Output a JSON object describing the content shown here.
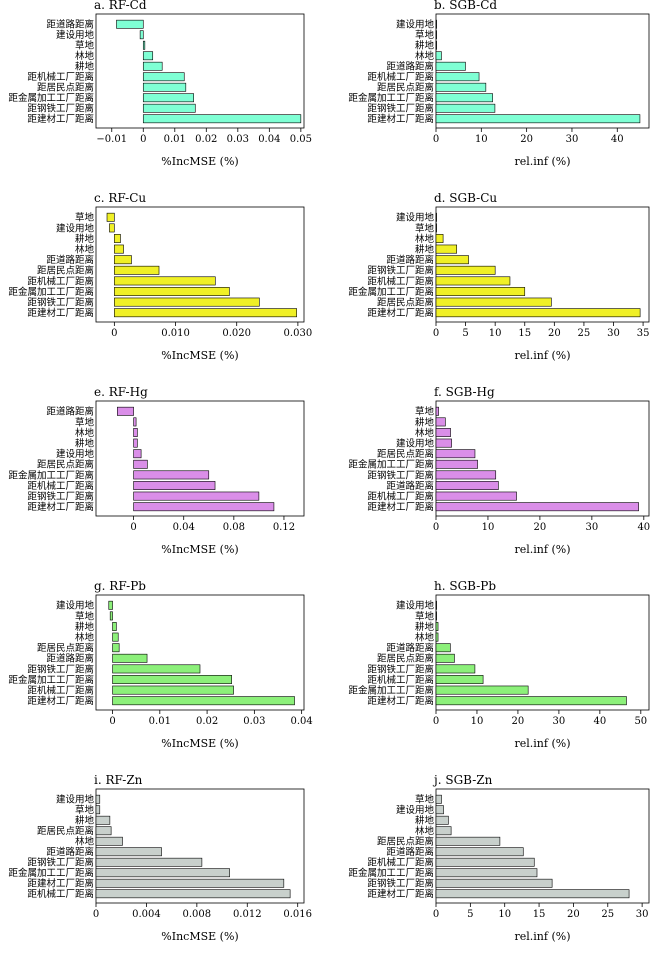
{
  "figure": "importance-panels",
  "chart_data": [
    {
      "type": "bar",
      "orientation": "horizontal",
      "title": "a. RF-Cd",
      "xlabel": "%IncMSE (%)",
      "xlim": [
        -0.015,
        0.051
      ],
      "xticks": [
        -0.01,
        0,
        0.01,
        0.02,
        0.03,
        0.04,
        0.05
      ],
      "xtick_labels": [
        "−0.01",
        "0",
        "0.01",
        "0.02",
        "0.03",
        "0.04",
        "0.05"
      ],
      "categories": [
        "距道路距离",
        "建设用地",
        "草地",
        "林地",
        "耕地",
        "距机械工厂距离",
        "距居民点距离",
        "距金属加工工厂距离",
        "距钢铁工厂距离",
        "距建材工厂距离"
      ],
      "values": [
        -0.0085,
        -0.001,
        0.0005,
        0.003,
        0.006,
        0.013,
        0.0135,
        0.016,
        0.0165,
        0.05
      ],
      "color": "#7fffd4"
    },
    {
      "type": "bar",
      "orientation": "horizontal",
      "title": "b. SGB-Cd",
      "xlabel": "rel.inf (%)",
      "xlim": [
        0,
        47
      ],
      "xticks": [
        0,
        10,
        20,
        30,
        40
      ],
      "xtick_labels": [
        "0",
        "10",
        "20",
        "30",
        "40"
      ],
      "categories": [
        "建设用地",
        "草地",
        "耕地",
        "林地",
        "距道路距离",
        "距机械工厂距离",
        "距居民点距离",
        "距金属加工工厂距离",
        "距钢铁工厂距离",
        "距建材工厂距离"
      ],
      "values": [
        0,
        0,
        0,
        1.2,
        6.5,
        9.5,
        11,
        12.5,
        13,
        45
      ],
      "color": "#7fffd4"
    },
    {
      "type": "bar",
      "orientation": "horizontal",
      "title": "c. RF-Cu",
      "xlabel": "%IncMSE (%)",
      "xlim": [
        -0.003,
        0.031
      ],
      "xticks": [
        0,
        0.01,
        0.02,
        0.03
      ],
      "xtick_labels": [
        "0",
        "0.010",
        "0.020",
        "0.030"
      ],
      "categories": [
        "草地",
        "建设用地",
        "耕地",
        "林地",
        "距道路距离",
        "距居民点距离",
        "距机械工厂距离",
        "距金属加工工厂距离",
        "距钢铁工厂距离",
        "距建材工厂距离"
      ],
      "values": [
        -0.0012,
        -0.0008,
        0.001,
        0.0015,
        0.0028,
        0.0073,
        0.0165,
        0.0188,
        0.0237,
        0.0298
      ],
      "color": "#f0f026"
    },
    {
      "type": "bar",
      "orientation": "horizontal",
      "title": "d. SGB-Cu",
      "xlabel": "rel.inf (%)",
      "xlim": [
        0,
        36
      ],
      "xticks": [
        0,
        5,
        10,
        15,
        20,
        25,
        30,
        35
      ],
      "xtick_labels": [
        "0",
        "5",
        "10",
        "15",
        "20",
        "25",
        "30",
        "35"
      ],
      "categories": [
        "建设用地",
        "草地",
        "林地",
        "耕地",
        "距道路距离",
        "距钢铁工厂距离",
        "距机械工厂距离",
        "距金属加工工厂距离",
        "距居民点距离",
        "距建材工厂距离"
      ],
      "values": [
        0,
        0,
        1.2,
        3.5,
        5.5,
        10,
        12.5,
        15,
        19.5,
        34.5
      ],
      "color": "#f0f026"
    },
    {
      "type": "bar",
      "orientation": "horizontal",
      "title": "e. RF-Hg",
      "xlabel": "%IncMSE (%)",
      "xlim": [
        -0.03,
        0.136
      ],
      "xticks": [
        0,
        0.04,
        0.08,
        0.12
      ],
      "xtick_labels": [
        "0",
        "0.04",
        "0.08",
        "0.12"
      ],
      "categories": [
        "距道路距离",
        "草地",
        "林地",
        "耕地",
        "建设用地",
        "距居民点距离",
        "距金属加工工厂距离",
        "距机械工厂距离",
        "距钢铁工厂距离",
        "距建材工厂距离"
      ],
      "values": [
        -0.013,
        0.002,
        0.003,
        0.003,
        0.006,
        0.011,
        0.06,
        0.065,
        0.1,
        0.112
      ],
      "color": "#da8ee8"
    },
    {
      "type": "bar",
      "orientation": "horizontal",
      "title": "f. SGB-Hg",
      "xlabel": "rel.inf (%)",
      "xlim": [
        0,
        41
      ],
      "xticks": [
        0,
        10,
        20,
        30,
        40
      ],
      "xtick_labels": [
        "0",
        "10",
        "20",
        "30",
        "40"
      ],
      "categories": [
        "草地",
        "耕地",
        "林地",
        "建设用地",
        "距居民点距离",
        "距金属加工工厂距离",
        "距钢铁工厂距离",
        "距道路距离",
        "距机械工厂距离",
        "距建材工厂距离"
      ],
      "values": [
        0.5,
        1.8,
        2.8,
        3,
        7.5,
        8,
        11.5,
        12,
        15.5,
        39
      ],
      "color": "#da8ee8"
    },
    {
      "type": "bar",
      "orientation": "horizontal",
      "title": "g. RF-Pb",
      "xlabel": "%IncMSE (%)",
      "xlim": [
        -0.0035,
        0.0405
      ],
      "xticks": [
        0,
        0.01,
        0.02,
        0.03,
        0.04
      ],
      "xtick_labels": [
        "0",
        "0.01",
        "0.02",
        "0.03",
        "0.04"
      ],
      "categories": [
        "建设用地",
        "草地",
        "耕地",
        "林地",
        "距居民点距离",
        "距道路距离",
        "距钢铁工厂距离",
        "距金属加工工厂距离",
        "距机械工厂距离",
        "距建材工厂距离"
      ],
      "values": [
        -0.0008,
        -0.0005,
        0.0008,
        0.0012,
        0.0014,
        0.0073,
        0.0185,
        0.0252,
        0.0256,
        0.0385
      ],
      "color": "#8cf07a"
    },
    {
      "type": "bar",
      "orientation": "horizontal",
      "title": "h. SGB-Pb",
      "xlabel": "rel.inf (%)",
      "xlim": [
        0,
        52
      ],
      "xticks": [
        0,
        10,
        20,
        30,
        40,
        50
      ],
      "xtick_labels": [
        "0",
        "10",
        "20",
        "30",
        "40",
        "50"
      ],
      "categories": [
        "建设用地",
        "草地",
        "耕地",
        "林地",
        "距道路距离",
        "距居民点距离",
        "距钢铁工厂距离",
        "距机械工厂距离",
        "距金属加工工厂距离",
        "距建材工厂距离"
      ],
      "values": [
        0,
        0,
        0.5,
        0.5,
        3.5,
        4.5,
        9.5,
        11.5,
        22.5,
        46.5
      ],
      "color": "#8cf07a"
    },
    {
      "type": "bar",
      "orientation": "horizontal",
      "title": "i. RF-Zn",
      "xlabel": "%IncMSE (%)",
      "xlim": [
        0,
        0.0165
      ],
      "xticks": [
        0,
        0.004,
        0.008,
        0.012,
        0.016
      ],
      "xtick_labels": [
        "0",
        "0.004",
        "0.008",
        "0.012",
        "0.016"
      ],
      "categories": [
        "建设用地",
        "草地",
        "耕地",
        "距居民点距离",
        "林地",
        "距道路距离",
        "距钢铁工厂距离",
        "距金属加工工厂距离",
        "距建材工厂距离",
        "距机械工厂距离"
      ],
      "values": [
        0.0003,
        0.0003,
        0.0011,
        0.0012,
        0.0021,
        0.0052,
        0.0084,
        0.0106,
        0.0149,
        0.0154
      ],
      "color": "#c8d0cc"
    },
    {
      "type": "bar",
      "orientation": "horizontal",
      "title": "j. SGB-Zn",
      "xlabel": "rel.inf (%)",
      "xlim": [
        0,
        31
      ],
      "xticks": [
        0,
        5,
        10,
        15,
        20,
        25,
        30
      ],
      "xtick_labels": [
        "0",
        "5",
        "10",
        "15",
        "20",
        "25",
        "30"
      ],
      "categories": [
        "草地",
        "建设用地",
        "耕地",
        "林地",
        "距居民点距离",
        "距道路距离",
        "距机械工厂距离",
        "距金属加工工厂距离",
        "距钢铁工厂距离",
        "距建材工厂距离"
      ],
      "values": [
        0.8,
        1.1,
        1.8,
        2.2,
        9.3,
        12.7,
        14.3,
        14.7,
        16.9,
        28.1
      ],
      "color": "#c8d0cc"
    }
  ]
}
